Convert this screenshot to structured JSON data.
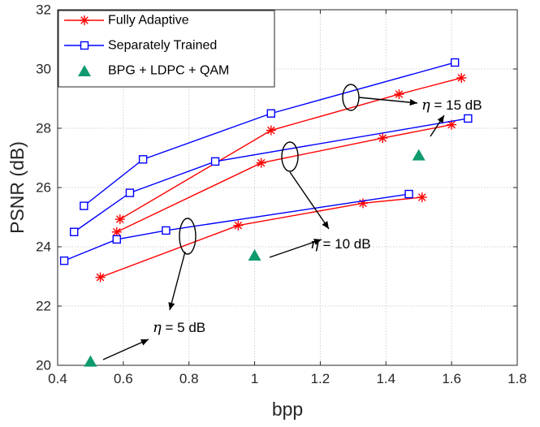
{
  "chart_data": {
    "type": "line",
    "xlabel": "bpp",
    "ylabel": "PSNR (dB)",
    "xlim": [
      0.4,
      1.8
    ],
    "ylim": [
      20,
      32
    ],
    "xticks": [
      "0.4",
      "0.6",
      "0.8",
      "1",
      "1.2",
      "1.4",
      "1.6",
      "1.8"
    ],
    "yticks": [
      "20",
      "22",
      "24",
      "26",
      "28",
      "30",
      "32"
    ],
    "grid": true,
    "legend_position": "top-left",
    "colors": {
      "fully_adaptive": "#ff0000",
      "separately_trained": "#0000ff",
      "bpg": "#109a6f"
    },
    "legend": [
      {
        "label": "Fully Adaptive",
        "marker": "asterisk"
      },
      {
        "label": "Separately Trained",
        "marker": "square"
      },
      {
        "label": "BPG + LDPC + QAM",
        "marker": "triangle"
      }
    ],
    "series": [
      {
        "name": "Fully Adaptive (η = 5 dB)",
        "marker": "asterisk",
        "x": [
          0.53,
          0.95,
          1.33,
          1.51
        ],
        "y": [
          22.97,
          24.72,
          25.47,
          25.67
        ]
      },
      {
        "name": "Fully Adaptive (η = 10 dB)",
        "marker": "asterisk",
        "x": [
          0.58,
          1.02,
          1.39,
          1.6
        ],
        "y": [
          24.5,
          26.83,
          27.67,
          28.12
        ]
      },
      {
        "name": "Fully Adaptive (η = 15 dB)",
        "marker": "asterisk",
        "x": [
          0.59,
          1.05,
          1.44,
          1.63
        ],
        "y": [
          24.93,
          27.93,
          29.15,
          29.7
        ]
      },
      {
        "name": "Separately Trained (η = 5 dB)",
        "marker": "square",
        "x": [
          0.42,
          0.58,
          0.73,
          1.47
        ],
        "y": [
          23.53,
          24.25,
          24.55,
          25.78
        ]
      },
      {
        "name": "Separately Trained (η = 10 dB)",
        "marker": "square",
        "x": [
          0.45,
          0.62,
          0.88,
          1.65
        ],
        "y": [
          24.5,
          25.82,
          26.88,
          28.33
        ]
      },
      {
        "name": "Separately Trained (η = 15 dB)",
        "marker": "square",
        "x": [
          0.48,
          0.66,
          1.05,
          1.61
        ],
        "y": [
          25.38,
          26.95,
          28.5,
          30.22
        ]
      },
      {
        "name": "BPG + LDPC + QAM",
        "marker": "triangle",
        "x": [
          0.5,
          1.0,
          1.5
        ],
        "y": [
          20.12,
          23.7,
          27.08
        ]
      }
    ],
    "annotations": [
      {
        "id": "eta-5",
        "eta": "η",
        "text": " = 5 dB"
      },
      {
        "id": "eta-10",
        "eta": "η",
        "text": " = 10 dB"
      },
      {
        "id": "eta-15",
        "eta": "η",
        "text": " = 15 dB"
      }
    ]
  }
}
